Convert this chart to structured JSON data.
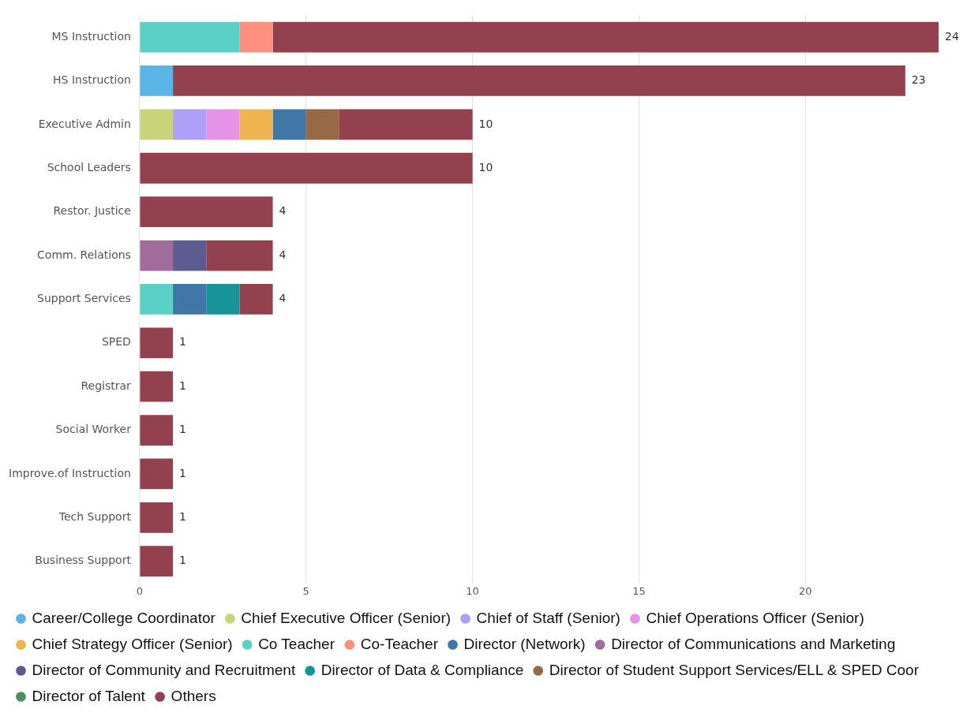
{
  "chart_data": {
    "type": "bar",
    "orientation": "horizontal",
    "stacked": true,
    "categories": [
      "MS Instruction",
      "HS Instruction",
      "Executive Admin",
      "School Leaders",
      "Restor. Justice",
      "Comm. Relations",
      "Support Services",
      "SPED",
      "Registrar",
      "Social Worker",
      "Improve.of Instruction",
      "Tech Support",
      "Business Support"
    ],
    "series": [
      {
        "name": "Career/College Coordinator",
        "color": "#5ab4e5",
        "values": [
          null,
          1,
          null,
          null,
          null,
          null,
          null,
          null,
          null,
          null,
          null,
          null,
          null
        ]
      },
      {
        "name": "Chief Executive Officer (Senior)",
        "color": "#c8d47a",
        "values": [
          null,
          null,
          1,
          null,
          null,
          null,
          null,
          null,
          null,
          null,
          null,
          null,
          null
        ]
      },
      {
        "name": "Chief of Staff (Senior)",
        "color": "#aca0f8",
        "values": [
          null,
          null,
          1,
          null,
          null,
          null,
          null,
          null,
          null,
          null,
          null,
          null,
          null
        ]
      },
      {
        "name": "Chief Operations Officer (Senior)",
        "color": "#e692e6",
        "values": [
          null,
          null,
          1,
          null,
          null,
          null,
          null,
          null,
          null,
          null,
          null,
          null,
          null
        ]
      },
      {
        "name": "Chief Strategy Officer (Senior)",
        "color": "#eeb44f",
        "values": [
          null,
          null,
          1,
          null,
          null,
          null,
          null,
          null,
          null,
          null,
          null,
          null,
          null
        ]
      },
      {
        "name": "Co Teacher",
        "color": "#5bd0c6",
        "values": [
          3,
          null,
          null,
          null,
          null,
          null,
          1,
          null,
          null,
          null,
          null,
          null,
          null
        ]
      },
      {
        "name": "Co-Teacher",
        "color": "#ff8f7e",
        "values": [
          1,
          null,
          null,
          null,
          null,
          null,
          null,
          null,
          null,
          null,
          null,
          null,
          null
        ]
      },
      {
        "name": "Director (Network)",
        "color": "#4177a6",
        "values": [
          null,
          null,
          1,
          null,
          null,
          null,
          1,
          null,
          null,
          null,
          null,
          null,
          null
        ]
      },
      {
        "name": "Director of Communications and Marketing",
        "color": "#a06c9c",
        "values": [
          null,
          null,
          null,
          null,
          null,
          1,
          null,
          null,
          null,
          null,
          null,
          null,
          null
        ]
      },
      {
        "name": "Director of Community and Recruitment",
        "color": "#5d5c92",
        "values": [
          null,
          null,
          null,
          null,
          null,
          1,
          null,
          null,
          null,
          null,
          null,
          null,
          null
        ]
      },
      {
        "name": "Director of Data & Compliance",
        "color": "#169498",
        "values": [
          null,
          null,
          null,
          null,
          null,
          null,
          1,
          null,
          null,
          null,
          null,
          null,
          null
        ]
      },
      {
        "name": "Director of Student Support Services/ELL & SPED Coor",
        "color": "#986945",
        "values": [
          null,
          null,
          1,
          null,
          null,
          null,
          null,
          null,
          null,
          null,
          null,
          null,
          null
        ]
      },
      {
        "name": "Director of Talent",
        "color": "#4a9060",
        "values": [
          null,
          null,
          null,
          null,
          null,
          null,
          null,
          null,
          null,
          null,
          null,
          null,
          null
        ]
      },
      {
        "name": "Others",
        "color": "#94414f",
        "values": [
          20,
          22,
          4,
          10,
          4,
          2,
          1,
          1,
          1,
          1,
          1,
          1,
          1
        ]
      }
    ],
    "totals": [
      "24",
      "23",
      "10",
      "10",
      "4",
      "4",
      "4",
      "1",
      "1",
      "1",
      "1",
      "1",
      "1"
    ],
    "xlim": [
      0,
      24
    ],
    "xticks": [
      0,
      5,
      10,
      15,
      20
    ],
    "grid": "x",
    "legend": "bottom"
  }
}
